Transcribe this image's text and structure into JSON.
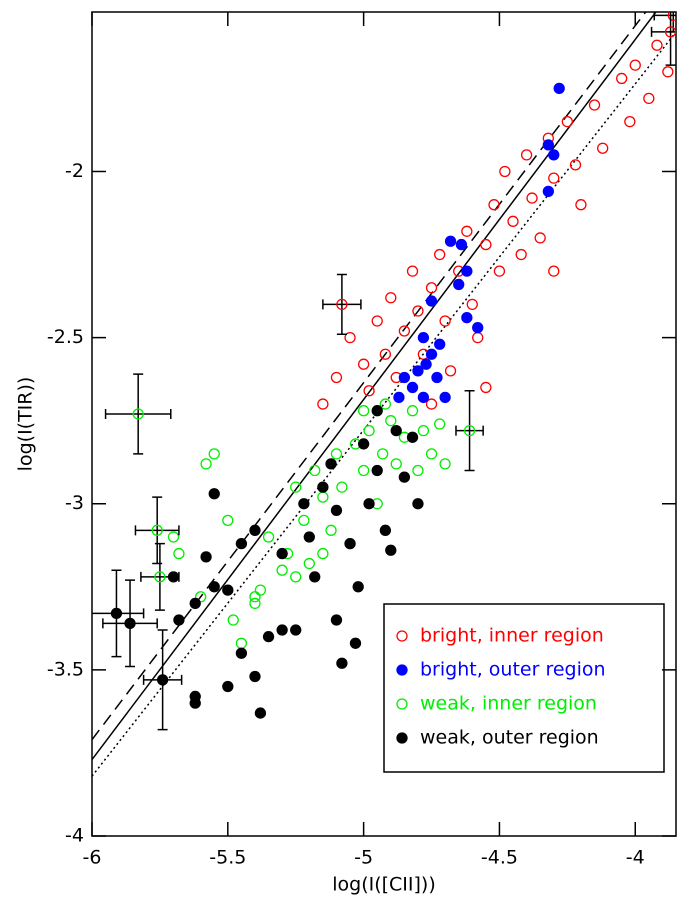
{
  "chart_data": {
    "type": "scatter",
    "xlabel": "log(I([CII]))",
    "ylabel": "log(I(TIR))",
    "xlim": [
      -6,
      -3.85
    ],
    "ylim": [
      -4,
      -1.52
    ],
    "xticks": [
      -6,
      -5.5,
      -5,
      -4.5,
      -4
    ],
    "yticks": [
      -4,
      -3.5,
      -3,
      -2.5,
      -2
    ],
    "legend": "lower right",
    "series": [
      {
        "name": "bright, inner region",
        "color": "#ff0000",
        "filled": false,
        "x": [
          -5.1,
          -5.05,
          -5.0,
          -4.98,
          -4.95,
          -4.92,
          -4.9,
          -4.88,
          -4.85,
          -4.82,
          -4.8,
          -4.78,
          -4.75,
          -4.72,
          -4.7,
          -4.68,
          -4.65,
          -4.62,
          -4.6,
          -4.58,
          -4.55,
          -4.52,
          -4.5,
          -4.48,
          -4.45,
          -4.42,
          -4.4,
          -4.38,
          -4.35,
          -4.32,
          -4.3,
          -4.25,
          -4.22,
          -4.2,
          -4.15,
          -4.12,
          -4.05,
          -4.02,
          -4.0,
          -3.95,
          -3.92,
          -3.88,
          -4.55,
          -4.75,
          -5.15,
          -4.3
        ],
        "values": [
          -2.62,
          -2.5,
          -2.58,
          -2.66,
          -2.45,
          -2.55,
          -2.38,
          -2.62,
          -2.48,
          -2.3,
          -2.42,
          -2.55,
          -2.35,
          -2.25,
          -2.45,
          -2.6,
          -2.3,
          -2.18,
          -2.4,
          -2.5,
          -2.22,
          -2.1,
          -2.3,
          -2.0,
          -2.15,
          -2.25,
          -1.95,
          -2.08,
          -2.2,
          -1.9,
          -2.02,
          -1.85,
          -1.98,
          -2.1,
          -1.8,
          -1.93,
          -1.72,
          -1.85,
          -1.68,
          -1.78,
          -1.62,
          -1.7,
          -2.65,
          -2.7,
          -2.7,
          -2.3
        ],
        "error_points": {
          "x": [
            -5.08,
            -3.86,
            -3.87
          ],
          "y": [
            -2.4,
            -1.53,
            -1.58
          ],
          "xerr": [
            0.07,
            0.07,
            0.07
          ],
          "yerr": [
            0.09,
            0.05,
            0.1
          ]
        }
      },
      {
        "name": "bright, outer region",
        "color": "#0000ff",
        "filled": true,
        "x": [
          -4.28,
          -4.32,
          -4.3,
          -4.32,
          -4.68,
          -4.64,
          -4.62,
          -4.65,
          -4.75,
          -4.62,
          -4.58,
          -4.78,
          -4.75,
          -4.72,
          -4.77,
          -4.8,
          -4.73,
          -4.82,
          -4.78,
          -4.87,
          -4.7,
          -4.85
        ],
        "values": [
          -1.75,
          -1.92,
          -1.95,
          -2.06,
          -2.21,
          -2.22,
          -2.3,
          -2.34,
          -2.39,
          -2.44,
          -2.47,
          -2.5,
          -2.55,
          -2.52,
          -2.58,
          -2.6,
          -2.62,
          -2.65,
          -2.68,
          -2.68,
          -2.68,
          -2.62
        ]
      },
      {
        "name": "weak, inner region",
        "color": "#00ee00",
        "filled": false,
        "x": [
          -5.7,
          -5.68,
          -5.6,
          -5.45,
          -5.4,
          -5.38,
          -5.35,
          -5.3,
          -5.28,
          -5.25,
          -5.22,
          -5.2,
          -5.18,
          -5.15,
          -5.12,
          -5.1,
          -5.08,
          -5.05,
          -5.03,
          -5.0,
          -4.98,
          -4.95,
          -4.93,
          -4.9,
          -4.88,
          -4.85,
          -4.82,
          -4.8,
          -4.78,
          -4.75,
          -4.72,
          -4.7,
          -5.25,
          -5.15,
          -5.4,
          -5.48,
          -5.0,
          -4.92,
          -5.55,
          -5.5,
          -5.58
        ],
        "values": [
          -3.1,
          -3.15,
          -3.28,
          -3.42,
          -3.3,
          -3.26,
          -3.1,
          -3.2,
          -3.15,
          -2.95,
          -3.05,
          -3.18,
          -2.9,
          -2.98,
          -3.08,
          -2.85,
          -2.95,
          -3.12,
          -2.82,
          -2.9,
          -2.78,
          -3.0,
          -2.85,
          -2.75,
          -2.88,
          -2.8,
          -2.72,
          -2.9,
          -2.78,
          -2.85,
          -2.76,
          -2.88,
          -3.22,
          -3.15,
          -3.28,
          -3.35,
          -2.72,
          -2.7,
          -2.85,
          -3.05,
          -2.88
        ],
        "error_points": {
          "x": [
            -5.83,
            -4.61,
            -5.76,
            -5.75
          ],
          "y": [
            -2.73,
            -2.78,
            -3.08,
            -3.22
          ],
          "xerr": [
            0.12,
            0.05,
            0.08,
            0.07
          ],
          "yerr": [
            0.12,
            0.12,
            0.1,
            0.1
          ]
        }
      },
      {
        "name": "weak, outer region",
        "color": "#000000",
        "filled": true,
        "x": [
          -5.62,
          -5.62,
          -5.5,
          -5.45,
          -5.4,
          -5.38,
          -5.35,
          -5.3,
          -5.25,
          -5.22,
          -5.2,
          -5.15,
          -5.1,
          -5.08,
          -5.05,
          -5.02,
          -5.0,
          -4.98,
          -4.95,
          -4.92,
          -4.9,
          -4.88,
          -4.85,
          -4.82,
          -4.8,
          -5.5,
          -5.58,
          -5.55,
          -5.62,
          -5.7,
          -5.45,
          -5.3,
          -5.18,
          -5.1,
          -5.03,
          -4.95,
          -5.12,
          -5.55,
          -5.68,
          -5.4
        ],
        "values": [
          -3.58,
          -3.6,
          -3.26,
          -3.45,
          -3.52,
          -3.63,
          -3.4,
          -3.15,
          -3.38,
          -3.0,
          -3.1,
          -2.95,
          -3.02,
          -3.48,
          -3.12,
          -3.25,
          -2.82,
          -3.0,
          -2.9,
          -3.08,
          -3.14,
          -2.78,
          -2.92,
          -2.8,
          -3.0,
          -3.55,
          -3.16,
          -3.25,
          -3.3,
          -3.22,
          -3.12,
          -3.38,
          -3.22,
          -3.35,
          -3.42,
          -2.72,
          -2.88,
          -2.97,
          -3.35,
          -3.08
        ],
        "error_points": {
          "x": [
            -5.91,
            -5.86,
            -5.74
          ],
          "y": [
            -3.33,
            -3.36,
            -3.53
          ],
          "xerr": [
            0.1,
            0.1,
            0.07
          ],
          "yerr": [
            0.13,
            0.13,
            0.15
          ]
        }
      }
    ],
    "lines": [
      {
        "style": "solid",
        "x": [
          -6,
          -3.85
        ],
        "y": [
          -3.77,
          -1.44
        ]
      },
      {
        "style": "dashed",
        "x": [
          -6,
          -3.85
        ],
        "y": [
          -3.71,
          -1.4
        ]
      },
      {
        "style": "dotted",
        "x": [
          -6,
          -3.85
        ],
        "y": [
          -3.82,
          -1.58
        ]
      }
    ]
  }
}
